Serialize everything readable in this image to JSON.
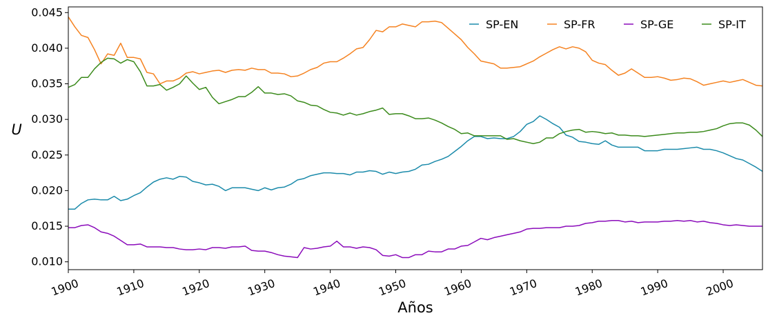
{
  "chart_data": {
    "type": "line",
    "title": "",
    "xlabel": "Años",
    "ylabel": "U",
    "xlim": [
      1900,
      2006
    ],
    "ylim": [
      0.0089,
      0.0458
    ],
    "grid": false,
    "legend_position": "top-right",
    "x_ticks": [
      1900,
      1910,
      1920,
      1930,
      1940,
      1950,
      1960,
      1970,
      1980,
      1990,
      2000
    ],
    "x_tick_labels": [
      "1900",
      "1910",
      "1920",
      "1930",
      "1940",
      "1950",
      "1960",
      "1970",
      "1980",
      "1990",
      "2000"
    ],
    "y_ticks": [
      0.01,
      0.015,
      0.02,
      0.025,
      0.03,
      0.035,
      0.04,
      0.045
    ],
    "y_tick_labels": [
      "0.010",
      "0.015",
      "0.020",
      "0.025",
      "0.030",
      "0.035",
      "0.040",
      "0.045"
    ],
    "x": [
      1900,
      1901,
      1902,
      1903,
      1904,
      1905,
      1906,
      1907,
      1908,
      1909,
      1910,
      1911,
      1912,
      1913,
      1914,
      1915,
      1916,
      1917,
      1918,
      1919,
      1920,
      1921,
      1922,
      1923,
      1924,
      1925,
      1926,
      1927,
      1928,
      1929,
      1930,
      1931,
      1932,
      1933,
      1934,
      1935,
      1936,
      1937,
      1938,
      1939,
      1940,
      1941,
      1942,
      1943,
      1944,
      1945,
      1946,
      1947,
      1948,
      1949,
      1950,
      1951,
      1952,
      1953,
      1954,
      1955,
      1956,
      1957,
      1958,
      1959,
      1960,
      1961,
      1962,
      1963,
      1964,
      1965,
      1966,
      1967,
      1968,
      1969,
      1970,
      1971,
      1972,
      1973,
      1974,
      1975,
      1976,
      1977,
      1978,
      1979,
      1980,
      1981,
      1982,
      1983,
      1984,
      1985,
      1986,
      1987,
      1988,
      1989,
      1990,
      1991,
      1992,
      1993,
      1994,
      1995,
      1996,
      1997,
      1998,
      1999,
      2000,
      2001,
      2002,
      2003,
      2004,
      2005,
      2006
    ],
    "series": [
      {
        "name": "SP-EN",
        "color": "#1a8aaa",
        "values": [
          0.0174,
          0.0174,
          0.0182,
          0.0187,
          0.0188,
          0.0187,
          0.0187,
          0.0192,
          0.0186,
          0.0188,
          0.0193,
          0.0197,
          0.0205,
          0.0212,
          0.0216,
          0.0218,
          0.0216,
          0.022,
          0.0219,
          0.0213,
          0.0211,
          0.0208,
          0.0209,
          0.0206,
          0.02,
          0.0204,
          0.0204,
          0.0204,
          0.0202,
          0.02,
          0.0204,
          0.0201,
          0.0204,
          0.0205,
          0.0209,
          0.0215,
          0.0217,
          0.0221,
          0.0223,
          0.0225,
          0.0225,
          0.0224,
          0.0224,
          0.0222,
          0.0226,
          0.0226,
          0.0228,
          0.0227,
          0.0223,
          0.0226,
          0.0224,
          0.0226,
          0.0227,
          0.023,
          0.0236,
          0.0237,
          0.0241,
          0.0244,
          0.0248,
          0.0255,
          0.0262,
          0.027,
          0.0276,
          0.0276,
          0.0273,
          0.0274,
          0.0273,
          0.0273,
          0.0276,
          0.0283,
          0.0293,
          0.0297,
          0.0305,
          0.03,
          0.0294,
          0.0289,
          0.0278,
          0.0275,
          0.0269,
          0.0268,
          0.0266,
          0.0265,
          0.027,
          0.0264,
          0.0261,
          0.0261,
          0.0261,
          0.0261,
          0.0256,
          0.0256,
          0.0256,
          0.0258,
          0.0258,
          0.0258,
          0.0259,
          0.026,
          0.0261,
          0.0258,
          0.0258,
          0.0256,
          0.0253,
          0.0249,
          0.0245,
          0.0243,
          0.0238,
          0.0233,
          0.0227
        ]
      },
      {
        "name": "SP-FR",
        "color": "#f58220",
        "values": [
          0.0444,
          0.043,
          0.0418,
          0.0415,
          0.0398,
          0.0378,
          0.0392,
          0.039,
          0.0407,
          0.0387,
          0.0387,
          0.0385,
          0.0366,
          0.0364,
          0.035,
          0.0354,
          0.0354,
          0.0358,
          0.0365,
          0.0367,
          0.0364,
          0.0366,
          0.0368,
          0.0369,
          0.0366,
          0.0369,
          0.037,
          0.0369,
          0.0372,
          0.037,
          0.037,
          0.0365,
          0.0365,
          0.0364,
          0.036,
          0.0361,
          0.0365,
          0.037,
          0.0373,
          0.0379,
          0.0381,
          0.0381,
          0.0386,
          0.0392,
          0.0399,
          0.0401,
          0.0412,
          0.0425,
          0.0423,
          0.043,
          0.043,
          0.0434,
          0.0432,
          0.043,
          0.0437,
          0.0437,
          0.0438,
          0.0436,
          0.0428,
          0.042,
          0.0412,
          0.0401,
          0.0392,
          0.0382,
          0.038,
          0.0378,
          0.0372,
          0.0372,
          0.0373,
          0.0374,
          0.0378,
          0.0382,
          0.0388,
          0.0393,
          0.0398,
          0.0402,
          0.0399,
          0.0402,
          0.04,
          0.0395,
          0.0383,
          0.0379,
          0.0377,
          0.0369,
          0.0362,
          0.0365,
          0.0371,
          0.0365,
          0.0359,
          0.0359,
          0.036,
          0.0358,
          0.0355,
          0.0356,
          0.0358,
          0.0357,
          0.0353,
          0.0348,
          0.035,
          0.0352,
          0.0354,
          0.0352,
          0.0354,
          0.0356,
          0.0352,
          0.0348,
          0.0347
        ]
      },
      {
        "name": "SP-GE",
        "color": "#8a0aba",
        "values": [
          0.0148,
          0.0148,
          0.0151,
          0.0152,
          0.0148,
          0.0142,
          0.014,
          0.0136,
          0.013,
          0.0124,
          0.0124,
          0.0125,
          0.0121,
          0.0121,
          0.0121,
          0.012,
          0.012,
          0.0118,
          0.0117,
          0.0117,
          0.0118,
          0.0117,
          0.012,
          0.012,
          0.0119,
          0.0121,
          0.0121,
          0.0122,
          0.0116,
          0.0115,
          0.0115,
          0.0113,
          0.011,
          0.0108,
          0.0107,
          0.0106,
          0.012,
          0.0118,
          0.0119,
          0.0121,
          0.0122,
          0.0129,
          0.0121,
          0.0121,
          0.0119,
          0.0121,
          0.012,
          0.0117,
          0.0109,
          0.0108,
          0.011,
          0.0106,
          0.0106,
          0.011,
          0.011,
          0.0115,
          0.0114,
          0.0114,
          0.0118,
          0.0118,
          0.0122,
          0.0123,
          0.0128,
          0.0133,
          0.0131,
          0.0134,
          0.0136,
          0.0138,
          0.014,
          0.0142,
          0.0146,
          0.0147,
          0.0147,
          0.0148,
          0.0148,
          0.0148,
          0.015,
          0.015,
          0.0151,
          0.0154,
          0.0155,
          0.0157,
          0.0157,
          0.0158,
          0.0158,
          0.0156,
          0.0157,
          0.0155,
          0.0156,
          0.0156,
          0.0156,
          0.0157,
          0.0157,
          0.0158,
          0.0157,
          0.0158,
          0.0156,
          0.0157,
          0.0155,
          0.0154,
          0.0152,
          0.0151,
          0.0152,
          0.0151,
          0.015,
          0.015,
          0.015
        ]
      },
      {
        "name": "SP-IT",
        "color": "#3a8a1a",
        "values": [
          0.0345,
          0.0349,
          0.0359,
          0.0359,
          0.0371,
          0.038,
          0.0386,
          0.0385,
          0.0379,
          0.0384,
          0.0381,
          0.0367,
          0.0347,
          0.0347,
          0.0349,
          0.0341,
          0.0345,
          0.035,
          0.0361,
          0.0351,
          0.0342,
          0.0345,
          0.0331,
          0.0322,
          0.0325,
          0.0328,
          0.0332,
          0.0332,
          0.0338,
          0.0346,
          0.0337,
          0.0337,
          0.0335,
          0.0336,
          0.0333,
          0.0326,
          0.0324,
          0.032,
          0.0319,
          0.0314,
          0.031,
          0.0309,
          0.0306,
          0.0309,
          0.0306,
          0.0308,
          0.0311,
          0.0313,
          0.0316,
          0.0307,
          0.0308,
          0.0308,
          0.0305,
          0.0301,
          0.0301,
          0.0302,
          0.0299,
          0.0295,
          0.029,
          0.0286,
          0.028,
          0.0281,
          0.0277,
          0.0277,
          0.0277,
          0.0277,
          0.0277,
          0.0272,
          0.0273,
          0.027,
          0.0268,
          0.0266,
          0.0268,
          0.0274,
          0.0274,
          0.028,
          0.0283,
          0.0285,
          0.0286,
          0.0282,
          0.0283,
          0.0282,
          0.028,
          0.0281,
          0.0278,
          0.0278,
          0.0277,
          0.0277,
          0.0276,
          0.0277,
          0.0278,
          0.0279,
          0.028,
          0.0281,
          0.0281,
          0.0282,
          0.0282,
          0.0283,
          0.0285,
          0.0287,
          0.0291,
          0.0294,
          0.0295,
          0.0295,
          0.0292,
          0.0285,
          0.0276
        ]
      }
    ]
  }
}
